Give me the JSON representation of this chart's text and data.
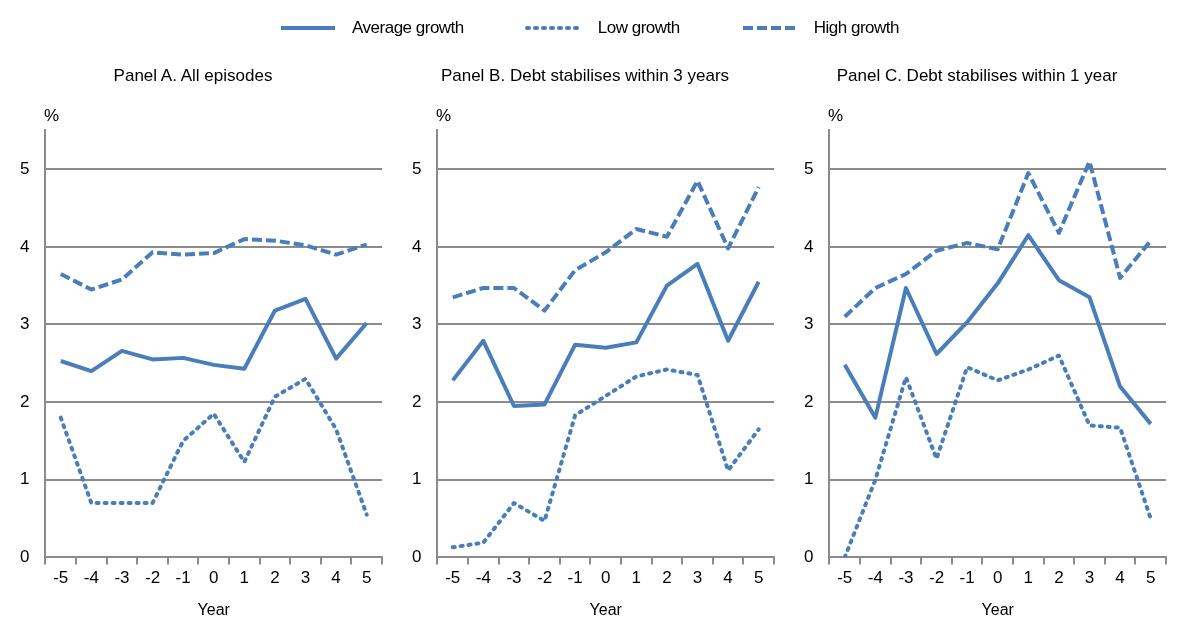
{
  "chart_data": [
    {
      "type": "line",
      "title": "Panel A. All episodes",
      "xlabel": "Year",
      "ylabel": "%",
      "categories": [
        "-5",
        "-4",
        "-3",
        "-2",
        "-1",
        "0",
        "1",
        "2",
        "3",
        "4",
        "5"
      ],
      "ylim": [
        0,
        5.5
      ],
      "yticks": [
        0,
        1,
        2,
        3,
        4,
        5
      ],
      "grid": "y",
      "legend": "top",
      "marker": "none",
      "series": [
        {
          "name": "Average growth",
          "color": "#4a7ebb",
          "line_style": "solid",
          "values": [
            2.53,
            2.4,
            2.66,
            2.55,
            2.57,
            2.48,
            2.43,
            3.18,
            3.33,
            2.56,
            3.02
          ]
        },
        {
          "name": "Low growth",
          "color": "#4a7ebb",
          "line_style": "dotted",
          "values": [
            1.8,
            0.7,
            0.7,
            0.7,
            1.5,
            1.85,
            1.23,
            2.07,
            2.3,
            1.65,
            0.55
          ]
        },
        {
          "name": "High growth",
          "color": "#4a7ebb",
          "line_style": "dashed",
          "values": [
            3.65,
            3.45,
            3.58,
            3.93,
            3.9,
            3.92,
            4.1,
            4.08,
            4.02,
            3.9,
            4.03
          ]
        }
      ]
    },
    {
      "type": "line",
      "title": "Panel B. Debt stabilises within 3 years",
      "xlabel": "Year",
      "ylabel": "%",
      "categories": [
        "-5",
        "-4",
        "-3",
        "-2",
        "-1",
        "0",
        "1",
        "2",
        "3",
        "4",
        "5"
      ],
      "ylim": [
        0,
        5.5
      ],
      "yticks": [
        0,
        1,
        2,
        3,
        4,
        5
      ],
      "grid": "y",
      "marker": "none",
      "series": [
        {
          "name": "Average growth",
          "color": "#4a7ebb",
          "line_style": "solid",
          "values": [
            2.28,
            2.79,
            1.95,
            1.97,
            2.74,
            2.7,
            2.77,
            3.5,
            3.78,
            2.79,
            3.55
          ]
        },
        {
          "name": "Low growth",
          "color": "#4a7ebb",
          "line_style": "dotted",
          "values": [
            0.13,
            0.19,
            0.7,
            0.47,
            1.83,
            2.08,
            2.33,
            2.42,
            2.35,
            1.12,
            1.65
          ]
        },
        {
          "name": "High growth",
          "color": "#4a7ebb",
          "line_style": "dashed",
          "values": [
            3.35,
            3.47,
            3.47,
            3.18,
            3.7,
            3.93,
            4.23,
            4.13,
            4.85,
            3.98,
            4.77
          ]
        }
      ]
    },
    {
      "type": "line",
      "title": "Panel C. Debt stabilises within 1 year",
      "xlabel": "Year",
      "ylabel": "%",
      "categories": [
        "-5",
        "-4",
        "-3",
        "-2",
        "-1",
        "0",
        "1",
        "2",
        "3",
        "4",
        "5"
      ],
      "ylim": [
        0,
        5.5
      ],
      "yticks": [
        0,
        1,
        2,
        3,
        4,
        5
      ],
      "grid": "y",
      "marker": "none",
      "series": [
        {
          "name": "Average growth",
          "color": "#4a7ebb",
          "line_style": "solid",
          "values": [
            2.48,
            1.8,
            3.47,
            2.62,
            3.03,
            3.53,
            4.15,
            3.57,
            3.35,
            2.2,
            1.72
          ]
        },
        {
          "name": "Low growth",
          "color": "#4a7ebb",
          "line_style": "dotted",
          "values": [
            0,
            1.0,
            2.32,
            1.27,
            2.45,
            2.28,
            2.42,
            2.6,
            1.7,
            1.67,
            0.5
          ]
        },
        {
          "name": "High growth",
          "color": "#4a7ebb",
          "line_style": "dashed",
          "values": [
            3.1,
            3.47,
            3.65,
            3.95,
            4.05,
            3.97,
            4.95,
            4.18,
            5.1,
            3.6,
            4.08
          ]
        }
      ]
    }
  ]
}
